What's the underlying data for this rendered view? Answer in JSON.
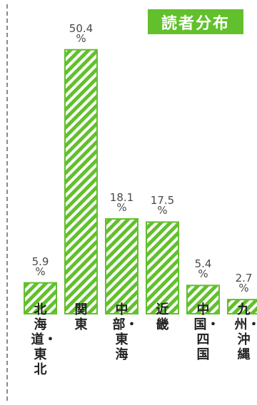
{
  "chart_data": {
    "type": "bar",
    "title": "読者分布",
    "categories": [
      "北海道・東北",
      "関東",
      "中部・東海",
      "近畿",
      "中国・四国",
      "九州・沖縄"
    ],
    "values": [
      5.9,
      50.4,
      18.1,
      17.5,
      5.4,
      2.7
    ],
    "value_labels": [
      {
        "value": "5.9",
        "unit": "%"
      },
      {
        "value": "50.4",
        "unit": "%"
      },
      {
        "value": "18.1",
        "unit": "%"
      },
      {
        "value": "17.5",
        "unit": "%"
      },
      {
        "value": "5.4",
        "unit": "%"
      },
      {
        "value": "2.7",
        "unit": "%"
      }
    ],
    "ylim": [
      0,
      52
    ],
    "grid": false,
    "legend": "none",
    "colors": {
      "bar_fill": "#62c02c",
      "bar_stripe_bg": "#ffffff",
      "title_bg": "#62c02c",
      "title_text": "#ffffff",
      "divider": "#8a8a8a"
    }
  }
}
